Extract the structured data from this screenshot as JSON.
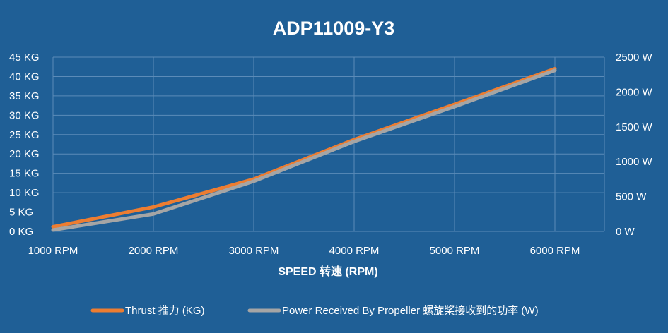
{
  "chart_data": {
    "type": "line",
    "title": "ADP11009-Y3",
    "xlabel": "SPEED 转速 (RPM)",
    "x_ticks": [
      "1000 RPM",
      "2000 RPM",
      "3000 RPM",
      "4000 RPM",
      "5000 RPM",
      "6000 RPM"
    ],
    "x": [
      1000,
      2000,
      3000,
      4000,
      5000,
      6000
    ],
    "y_left": {
      "ticks": [
        "0 KG",
        "5 KG",
        "10 KG",
        "15 KG",
        "20 KG",
        "25 KG",
        "30 KG",
        "35 KG",
        "40 KG",
        "45 KG"
      ],
      "range": [
        0,
        45
      ]
    },
    "y_right": {
      "ticks": [
        "0 W",
        "500 W",
        "1000 W",
        "1500 W",
        "2000 W",
        "2500 W"
      ],
      "range": [
        0,
        2500
      ]
    },
    "grid": true,
    "legend_position": "bottom",
    "series": [
      {
        "name": "Thrust 推力 (KG)",
        "axis": "left",
        "color": "#ed7d31",
        "values": [
          1.2,
          6.3,
          13.5,
          23.7,
          32.8,
          42.0
        ]
      },
      {
        "name": "Power Received By Propeller 螺旋桨接收到的功率 (W)",
        "axis": "right",
        "color": "#a5a5a5",
        "values": [
          20,
          250,
          720,
          1290,
          1790,
          2310
        ]
      }
    ],
    "colors": {
      "background": "#1f5f96",
      "grid": "#5b8bb8",
      "text": "#ffffff"
    }
  }
}
